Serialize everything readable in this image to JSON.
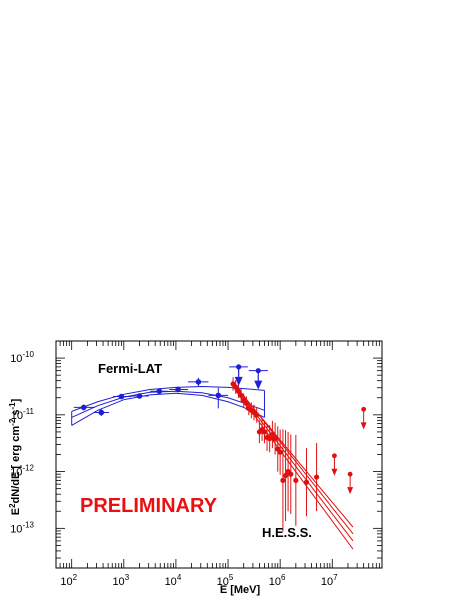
{
  "chart_data": {
    "type": "scatter",
    "xscale": "log",
    "yscale": "log",
    "xlim": [
      50,
      90000000
    ],
    "ylim": [
      2e-14,
      2e-10
    ],
    "xlabel": "E [MeV]",
    "ylabel_parts": {
      "a": "E",
      "a_sup": "2",
      "b": "dN/dE [ erg cm",
      "b_sup": "-2",
      "c": " s",
      "c_sup": "-1",
      "d": "]"
    },
    "x_ticks": [
      {
        "value": 100,
        "base": "10",
        "exp": "2"
      },
      {
        "value": 1000,
        "base": "10",
        "exp": "3"
      },
      {
        "value": 10000,
        "base": "10",
        "exp": "4"
      },
      {
        "value": 100000,
        "base": "10",
        "exp": "5"
      },
      {
        "value": 1000000,
        "base": "10",
        "exp": "6"
      },
      {
        "value": 10000000,
        "base": "10",
        "exp": "7"
      }
    ],
    "y_ticks": [
      {
        "value": 1e-13,
        "base": "10",
        "exp": "-13"
      },
      {
        "value": 1e-12,
        "base": "10",
        "exp": "-12"
      },
      {
        "value": 1e-11,
        "base": "10",
        "exp": "-11"
      },
      {
        "value": 1e-10,
        "base": "10",
        "exp": "-10"
      }
    ],
    "annotations": {
      "fermi": "Fermi-LAT",
      "hess": "H.E.S.S.",
      "preliminary": "PRELIMINARY"
    },
    "colors": {
      "fermi": "#1f1fd6",
      "hess": "#e01010",
      "preliminary": "#e81010",
      "text": "#000000"
    },
    "series": [
      {
        "name": "Fermi-LAT",
        "color": "#1f1fd6",
        "points": [
          {
            "x": 170,
            "y": 1.35e-11,
            "xlo": 110,
            "xhi": 280,
            "ylo": 1.2e-11,
            "yhi": 1.5e-11
          },
          {
            "x": 370,
            "y": 1.1e-11,
            "xlo": 270,
            "xhi": 520,
            "ylo": 9.5e-12,
            "yhi": 1.25e-11
          },
          {
            "x": 900,
            "y": 2.1e-11,
            "xlo": 620,
            "xhi": 1400,
            "ylo": 1.95e-11,
            "yhi": 2.25e-11
          },
          {
            "x": 2000,
            "y": 2.15e-11,
            "xlo": 1400,
            "xhi": 3000,
            "ylo": 2e-11,
            "yhi": 2.3e-11
          },
          {
            "x": 4800,
            "y": 2.6e-11,
            "xlo": 3200,
            "xhi": 7200,
            "ylo": 2.4e-11,
            "yhi": 2.8e-11
          },
          {
            "x": 11000,
            "y": 2.8e-11,
            "xlo": 7500,
            "xhi": 17000,
            "ylo": 2.5e-11,
            "yhi": 3.1e-11
          },
          {
            "x": 27000,
            "y": 3.8e-11,
            "xlo": 17000,
            "xhi": 42000,
            "ylo": 3.2e-11,
            "yhi": 4.5e-11
          },
          {
            "x": 65000,
            "y": 2.2e-11,
            "xlo": 42000,
            "xhi": 100000,
            "ylo": 1.3e-11,
            "yhi": 3e-11
          }
        ],
        "upper_limits": [
          {
            "x": 160000,
            "y": 7e-11,
            "xlo": 105000,
            "xhi": 240000
          },
          {
            "x": 380000,
            "y": 6e-11,
            "xlo": 250000,
            "xhi": 580000
          }
        ],
        "model_band": [
          {
            "x": 100,
            "upper": 1.15e-11,
            "lower": 6.5e-12
          },
          {
            "x": 316,
            "upper": 1.7e-11,
            "lower": 1.2e-11
          },
          {
            "x": 1000,
            "upper": 2.3e-11,
            "lower": 1.85e-11
          },
          {
            "x": 3162,
            "upper": 2.8e-11,
            "lower": 2.25e-11
          },
          {
            "x": 10000,
            "upper": 3.05e-11,
            "lower": 2.4e-11
          },
          {
            "x": 31623,
            "upper": 3.15e-11,
            "lower": 2.2e-11
          },
          {
            "x": 100000,
            "upper": 3.05e-11,
            "lower": 1.7e-11
          },
          {
            "x": 200000,
            "upper": 2.9e-11,
            "lower": 1.35e-11
          },
          {
            "x": 500000,
            "upper": 2.7e-11,
            "lower": 9e-12
          }
        ],
        "model_best": [
          {
            "x": 100,
            "y": 9e-12
          },
          {
            "x": 316,
            "y": 1.45e-11
          },
          {
            "x": 1000,
            "y": 2.05e-11
          },
          {
            "x": 3162,
            "y": 2.5e-11
          },
          {
            "x": 10000,
            "y": 2.6e-11
          },
          {
            "x": 31623,
            "y": 2.45e-11
          },
          {
            "x": 100000,
            "y": 2e-11
          },
          {
            "x": 316228,
            "y": 1.4e-11
          },
          {
            "x": 500000,
            "y": 1.2e-11
          }
        ]
      },
      {
        "name": "H.E.S.S.",
        "color": "#e01010",
        "points": [
          {
            "x": 125000,
            "y": 3.5e-11,
            "yerr": 0.06
          },
          {
            "x": 140000,
            "y": 3.1e-11,
            "yerr": 0.06
          },
          {
            "x": 158000,
            "y": 2.6e-11,
            "yerr": 0.06
          },
          {
            "x": 178000,
            "y": 2.2e-11,
            "yerr": 0.06
          },
          {
            "x": 200000,
            "y": 1.8e-11,
            "yerr": 0.06
          },
          {
            "x": 225000,
            "y": 1.6e-11,
            "yerr": 0.06
          },
          {
            "x": 250000,
            "y": 1.3e-11,
            "yerr": 0.06
          },
          {
            "x": 280000,
            "y": 1.2e-11,
            "yerr": 0.07
          },
          {
            "x": 315000,
            "y": 1.1e-11,
            "yerr": 0.07
          },
          {
            "x": 355000,
            "y": 1e-11,
            "yerr": 0.07
          },
          {
            "x": 400000,
            "y": 5e-12,
            "yerr": 0.1
          },
          {
            "x": 450000,
            "y": 5.5e-12,
            "yerr": 0.1
          },
          {
            "x": 500000,
            "y": 5e-12,
            "yerr": 0.1
          },
          {
            "x": 560000,
            "y": 4e-12,
            "yerr": 0.12
          },
          {
            "x": 630000,
            "y": 3.8e-12,
            "yerr": 0.12
          },
          {
            "x": 710000,
            "y": 4.5e-12,
            "yerr": 0.12
          },
          {
            "x": 800000,
            "y": 3.8e-12,
            "yerr": 0.14
          },
          {
            "x": 900000,
            "y": 2.5e-12,
            "yerr": 0.2
          },
          {
            "x": 1000000,
            "y": 2.2e-12,
            "yerr": 0.2
          },
          {
            "x": 1130000,
            "y": 7e-13,
            "yerr": 0.45
          },
          {
            "x": 1270000,
            "y": 8.5e-13,
            "yerr": 0.4
          },
          {
            "x": 1420000,
            "y": 1e-12,
            "yerr": 0.35
          },
          {
            "x": 1600000,
            "y": 9e-13,
            "yerr": 0.35
          },
          {
            "x": 2000000,
            "y": 7e-13,
            "yerr": 0.4
          },
          {
            "x": 3200000,
            "y": 6.5e-13,
            "yerr": 0.3
          },
          {
            "x": 5000000,
            "y": 8e-13,
            "yerr": 0.3
          }
        ],
        "upper_limits": [
          {
            "x": 11000000,
            "y": 1.9e-12
          },
          {
            "x": 22000000,
            "y": 9e-13
          },
          {
            "x": 40000000,
            "y": 1.25e-11
          }
        ],
        "model_lines": [
          [
            {
              "x": 120000,
              "y": 3.6e-11
            },
            {
              "x": 25000000,
              "y": 6e-14
            }
          ],
          [
            {
              "x": 120000,
              "y": 3.9e-11
            },
            {
              "x": 25000000,
              "y": 8e-14
            }
          ],
          [
            {
              "x": 120000,
              "y": 3.3e-11
            },
            {
              "x": 25000000,
              "y": 4.3e-14
            }
          ],
          [
            {
              "x": 120000,
              "y": 3.7e-11
            },
            {
              "x": 25000000,
              "y": 1.05e-13
            }
          ]
        ]
      }
    ]
  }
}
